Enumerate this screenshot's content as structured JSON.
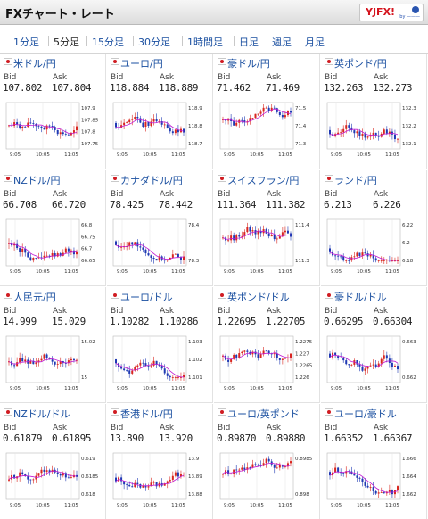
{
  "header": {
    "title": "FXチャート・レート",
    "logo_text": "YJFX!",
    "logo_sub": "by ———"
  },
  "tabs": [
    "1分足",
    "5分足",
    "15分足",
    "30分足",
    "1時間足",
    "日足",
    "週足",
    "月足"
  ],
  "active_tab": "5分足",
  "bid_label": "Bid",
  "ask_label": "Ask",
  "colors": {
    "up": "#d8261f",
    "down": "#1f39b3",
    "ma": "#c11ad3",
    "link": "#1a4fa0"
  },
  "pairs": [
    {
      "name": "米ドル/円",
      "bid": "107.802",
      "ask": "107.804",
      "ticks": [
        "107.9",
        "107.85",
        "107.8",
        "107.75"
      ],
      "xticks": [
        "9:05",
        "10:05",
        "11:05"
      ]
    },
    {
      "name": "ユーロ/円",
      "bid": "118.884",
      "ask": "118.889",
      "ticks": [
        "118.9",
        "118.8",
        "118.7"
      ],
      "xticks": [
        "9:05",
        "10:05",
        "11:05"
      ]
    },
    {
      "name": "豪ドル/円",
      "bid": "71.462",
      "ask": "71.469",
      "ticks": [
        "71.5",
        "71.4",
        "71.3"
      ],
      "xticks": [
        "9:05",
        "10:05",
        "11:05"
      ]
    },
    {
      "name": "英ポンド/円",
      "bid": "132.263",
      "ask": "132.273",
      "ticks": [
        "132.3",
        "132.2",
        "132.1"
      ],
      "xticks": [
        "9:05",
        "10:05",
        "11:05"
      ]
    },
    {
      "name": "NZドル/円",
      "bid": "66.708",
      "ask": "66.720",
      "ticks": [
        "66.8",
        "66.75",
        "66.7",
        "66.65"
      ],
      "xticks": [
        "9:05",
        "10:05",
        "11:05"
      ]
    },
    {
      "name": "カナダドル/円",
      "bid": "78.425",
      "ask": "78.442",
      "ticks": [
        "78.4",
        "78.3"
      ],
      "xticks": [
        "9:05",
        "10:05",
        "11:05"
      ]
    },
    {
      "name": "スイスフラン/円",
      "bid": "111.364",
      "ask": "111.382",
      "ticks": [
        "111.4",
        "111.3"
      ],
      "xticks": [
        "9:05",
        "10:05",
        "11:05"
      ]
    },
    {
      "name": "ランド/円",
      "bid": "6.213",
      "ask": "6.226",
      "ticks": [
        "6.22",
        "6.2",
        "6.18"
      ],
      "xticks": [
        "9:05",
        "10:05",
        "11:05"
      ]
    },
    {
      "name": "人民元/円",
      "bid": "14.999",
      "ask": "15.029",
      "ticks": [
        "15.02",
        "15"
      ],
      "xticks": [
        "9:05",
        "10:05",
        "11:05"
      ]
    },
    {
      "name": "ユーロ/ドル",
      "bid": "1.10282",
      "ask": "1.10286",
      "ticks": [
        "1.103",
        "1.102",
        "1.101"
      ],
      "xticks": [
        "9:05",
        "10:05",
        "11:05"
      ]
    },
    {
      "name": "英ポンド/ドル",
      "bid": "1.22695",
      "ask": "1.22705",
      "ticks": [
        "1.2275",
        "1.227",
        "1.2265",
        "1.226"
      ],
      "xticks": [
        "9:05",
        "10:05",
        "11:05"
      ]
    },
    {
      "name": "豪ドル/ドル",
      "bid": "0.66295",
      "ask": "0.66304",
      "ticks": [
        "0.663",
        "0.662"
      ],
      "xticks": [
        "9:05",
        "10:05",
        "11:05"
      ]
    },
    {
      "name": "NZドル/ドル",
      "bid": "0.61879",
      "ask": "0.61895",
      "ticks": [
        "0.619",
        "0.6185",
        "0.618"
      ],
      "xticks": [
        "9:05",
        "10:05",
        "11:05"
      ]
    },
    {
      "name": "香港ドル/円",
      "bid": "13.890",
      "ask": "13.920",
      "ticks": [
        "13.9",
        "13.89",
        "13.88"
      ],
      "xticks": [
        "9:05",
        "10:05",
        "11:05"
      ]
    },
    {
      "name": "ユーロ/英ポンド",
      "bid": "0.89870",
      "ask": "0.89880",
      "ticks": [
        "0.8985",
        "0.898"
      ],
      "xticks": [
        "9:05",
        "10:05",
        "11:05"
      ]
    },
    {
      "name": "ユーロ/豪ドル",
      "bid": "1.66352",
      "ask": "1.66367",
      "ticks": [
        "1.666",
        "1.664",
        "1.662"
      ],
      "xticks": [
        "9:05",
        "10:05",
        "11:05"
      ]
    }
  ]
}
